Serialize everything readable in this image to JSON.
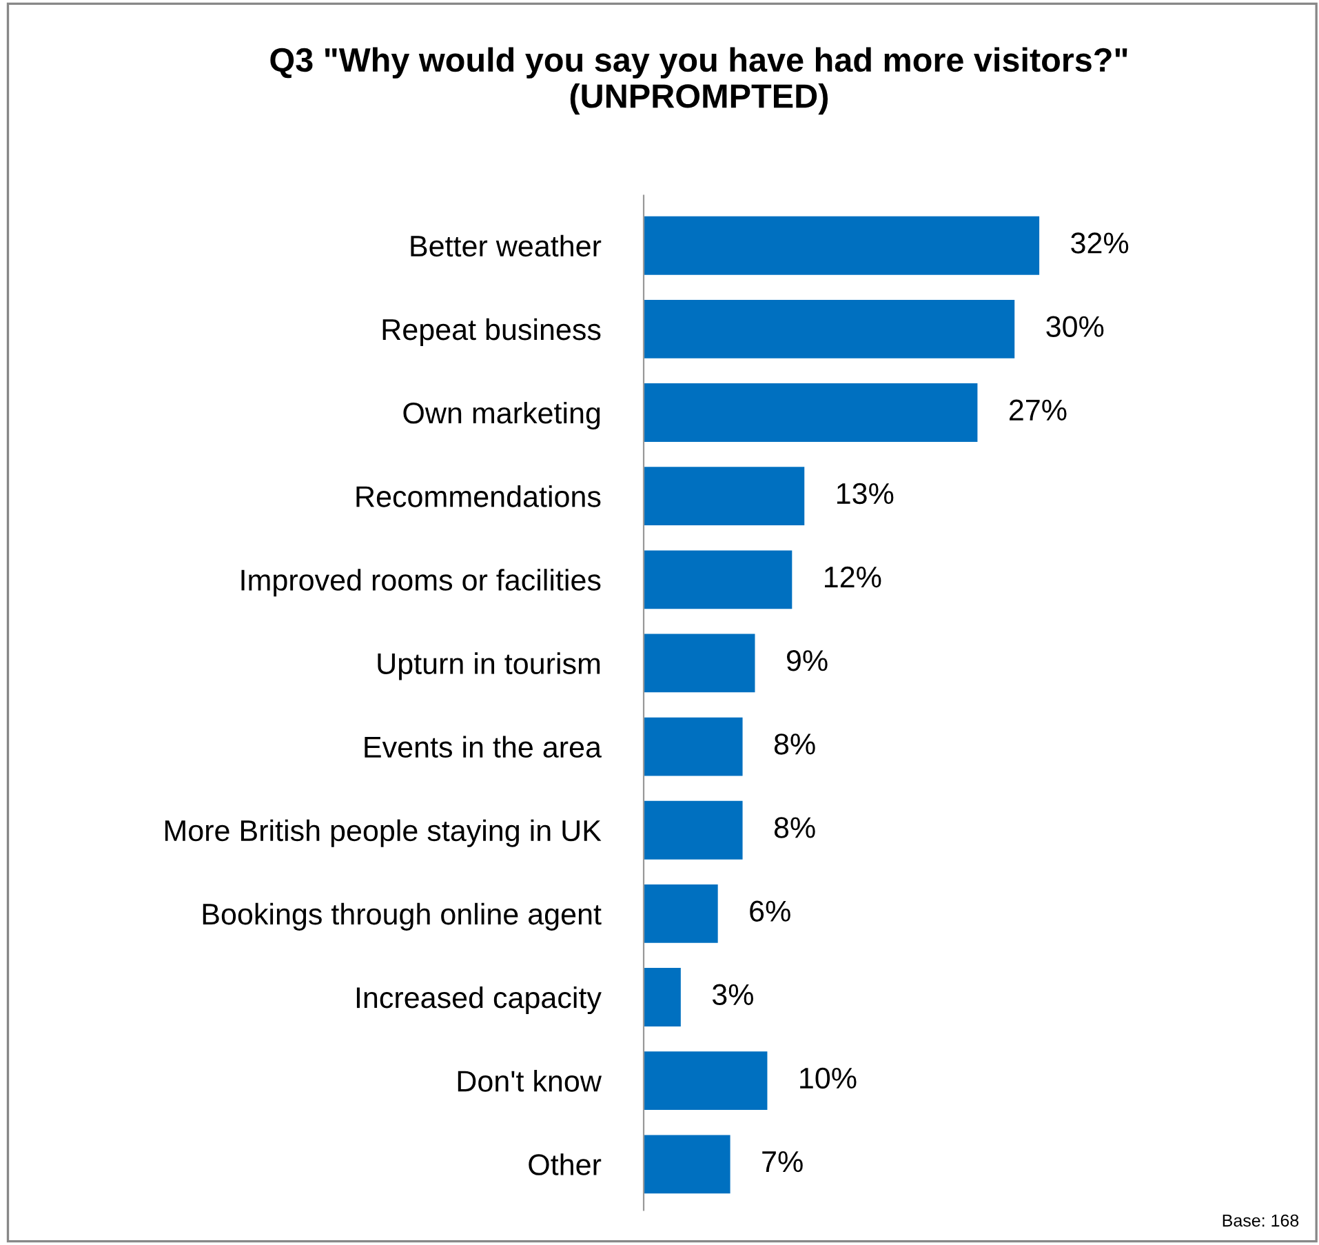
{
  "chart_data": {
    "type": "bar",
    "orientation": "horizontal",
    "title": "Q3 \"Why would you say you have had more visitors?\"\n(UNPROMPTED)",
    "categories": [
      "Better weather",
      "Repeat business",
      "Own marketing",
      "Recommendations",
      "Improved rooms or facilities",
      "Upturn in tourism",
      "Events in the area",
      "More British people staying in UK",
      "Bookings through online agent",
      "Increased capacity",
      "Don't know",
      "Other"
    ],
    "values": [
      32,
      30,
      27,
      13,
      12,
      9,
      8,
      8,
      6,
      3,
      10,
      7
    ],
    "value_labels": [
      "32%",
      "30%",
      "27%",
      "13%",
      "12%",
      "9%",
      "8%",
      "8%",
      "6%",
      "3%",
      "10%",
      "7%"
    ],
    "color": "#0070c0",
    "annotations": [
      "Base: 168"
    ],
    "grid": false,
    "legend": false
  }
}
